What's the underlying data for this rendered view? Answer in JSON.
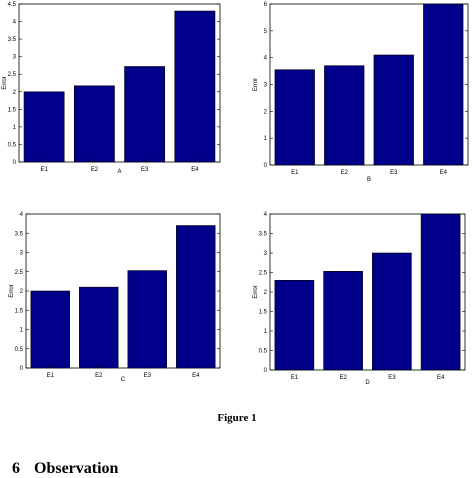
{
  "chart_data": [
    {
      "type": "bar",
      "panel_label": "A",
      "ylabel": "Error",
      "categories": [
        "E1",
        "E2",
        "E3",
        "E4"
      ],
      "values": [
        2.0,
        2.17,
        2.72,
        4.3
      ],
      "ylim": [
        0,
        4.5
      ],
      "yticks": [
        "0",
        "0.5",
        "1",
        "1.5",
        "2",
        "2.5",
        "3",
        "3.5",
        "4",
        "4.5"
      ],
      "bar_color": "#00008b",
      "grid": false
    },
    {
      "type": "bar",
      "panel_label": "B",
      "ylabel": "Error",
      "categories": [
        "E1",
        "E2",
        "E3",
        "E4"
      ],
      "values": [
        3.55,
        3.7,
        4.1,
        6.15
      ],
      "ylim": [
        0,
        6
      ],
      "yticks": [
        "0",
        "1",
        "2",
        "3",
        "4",
        "5",
        "6"
      ],
      "bar_color": "#00008b",
      "grid": false
    },
    {
      "type": "bar",
      "panel_label": "C",
      "ylabel": "Error",
      "categories": [
        "E1",
        "E2",
        "E3",
        "E4"
      ],
      "values": [
        2.0,
        2.1,
        2.53,
        3.7
      ],
      "ylim": [
        0,
        4
      ],
      "yticks": [
        "0",
        "0.5",
        "1",
        "1.5",
        "2",
        "2.5",
        "3",
        "3.5",
        "4"
      ],
      "bar_color": "#00008b",
      "grid": false
    },
    {
      "type": "bar",
      "panel_label": "D",
      "ylabel": "Error",
      "categories": [
        "E1",
        "E2",
        "E3",
        "E4"
      ],
      "values": [
        2.3,
        2.53,
        3.0,
        4.0
      ],
      "ylim": [
        0,
        4
      ],
      "yticks": [
        "0",
        "0.5",
        "1",
        "1.5",
        "2",
        "2.5",
        "3",
        "3.5",
        "4"
      ],
      "bar_color": "#00008b",
      "grid": false
    }
  ],
  "figure_caption": "Figure 1",
  "section": {
    "number": "6",
    "title": "Observation"
  }
}
